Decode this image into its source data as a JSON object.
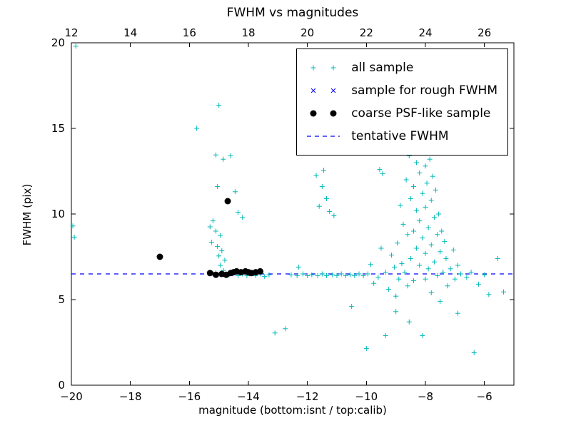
{
  "chart_data": {
    "type": "scatter",
    "title": "FWHM vs magnitudes",
    "xlabel": "magnitude (bottom:isnt / top:calib)",
    "ylabel": "FWHM (pix)",
    "xlim_bottom": [
      -20,
      -5
    ],
    "xlim_top": [
      12,
      27
    ],
    "ylim": [
      0,
      20
    ],
    "x_ticks_bottom": [
      -20,
      -18,
      -16,
      -14,
      -12,
      -10,
      -8,
      -6
    ],
    "x_ticks_top": [
      12,
      14,
      16,
      18,
      20,
      22,
      24,
      26
    ],
    "y_ticks": [
      0,
      5,
      10,
      15,
      20
    ],
    "grid": false,
    "legend_position": "upper right",
    "tentative_fwhm": 6.5,
    "colors": {
      "all_sample": "#00b8b8",
      "rough_fwhm": "#0000ff",
      "psf_like": "#000000",
      "tentative_line": "#0000ff",
      "frame": "#000000"
    },
    "series": [
      {
        "name": "all sample",
        "marker": "+",
        "color": "#00b8b8",
        "points": [
          [
            -19.85,
            19.8
          ],
          [
            -19.95,
            9.3
          ],
          [
            -19.9,
            8.65
          ],
          [
            -15.75,
            15.0
          ],
          [
            -15.0,
            16.35
          ],
          [
            -15.1,
            13.45
          ],
          [
            -14.85,
            13.2
          ],
          [
            -14.6,
            13.4
          ],
          [
            -15.05,
            11.6
          ],
          [
            -14.45,
            11.3
          ],
          [
            -14.35,
            10.1
          ],
          [
            -14.2,
            9.8
          ],
          [
            -15.2,
            9.6
          ],
          [
            -15.3,
            9.25
          ],
          [
            -15.1,
            9.0
          ],
          [
            -14.95,
            8.75
          ],
          [
            -15.25,
            8.35
          ],
          [
            -15.05,
            8.1
          ],
          [
            -14.9,
            7.85
          ],
          [
            -15.0,
            7.55
          ],
          [
            -14.8,
            7.3
          ],
          [
            -14.95,
            7.0
          ],
          [
            -14.85,
            6.7
          ],
          [
            -15.1,
            6.55
          ],
          [
            -14.65,
            6.45
          ],
          [
            -14.5,
            6.6
          ],
          [
            -14.35,
            6.4
          ],
          [
            -14.2,
            6.5
          ],
          [
            -14.05,
            6.4
          ],
          [
            -13.9,
            6.55
          ],
          [
            -13.75,
            6.4
          ],
          [
            -13.6,
            6.5
          ],
          [
            -13.45,
            6.35
          ],
          [
            -13.3,
            6.45
          ],
          [
            -13.1,
            3.05
          ],
          [
            -12.75,
            3.3
          ],
          [
            -12.55,
            6.45
          ],
          [
            -12.35,
            6.4
          ],
          [
            -12.3,
            6.9
          ],
          [
            -12.15,
            6.5
          ],
          [
            -12.0,
            6.4
          ],
          [
            -11.85,
            6.45
          ],
          [
            -11.65,
            6.4
          ],
          [
            -11.5,
            6.5
          ],
          [
            -11.35,
            6.4
          ],
          [
            -11.15,
            6.45
          ],
          [
            -11.0,
            6.4
          ],
          [
            -10.85,
            6.5
          ],
          [
            -10.7,
            6.4
          ],
          [
            -10.55,
            6.45
          ],
          [
            -10.4,
            6.4
          ],
          [
            -10.25,
            6.5
          ],
          [
            -10.1,
            6.4
          ],
          [
            -11.7,
            12.25
          ],
          [
            -11.45,
            12.55
          ],
          [
            -11.5,
            11.6
          ],
          [
            -11.35,
            10.9
          ],
          [
            -11.6,
            10.45
          ],
          [
            -11.25,
            10.15
          ],
          [
            -11.1,
            9.9
          ],
          [
            -10.5,
            4.6
          ],
          [
            -10.0,
            2.15
          ],
          [
            -9.35,
            2.9
          ],
          [
            -9.95,
            6.5
          ],
          [
            -9.85,
            7.05
          ],
          [
            -9.75,
            5.95
          ],
          [
            -9.6,
            6.3
          ],
          [
            -9.55,
            12.6
          ],
          [
            -9.45,
            12.35
          ],
          [
            -9.5,
            8.0
          ],
          [
            -9.35,
            6.6
          ],
          [
            -9.25,
            5.6
          ],
          [
            -9.15,
            7.6
          ],
          [
            -9.05,
            6.9
          ],
          [
            -9.0,
            5.2
          ],
          [
            -8.95,
            8.3
          ],
          [
            -8.9,
            6.2
          ],
          [
            -8.85,
            10.5
          ],
          [
            -8.8,
            7.1
          ],
          [
            -8.75,
            9.4
          ],
          [
            -8.7,
            6.6
          ],
          [
            -8.65,
            12.0
          ],
          [
            -8.6,
            8.8
          ],
          [
            -8.6,
            5.8
          ],
          [
            -8.55,
            13.4
          ],
          [
            -8.5,
            10.9
          ],
          [
            -8.5,
            7.4
          ],
          [
            -8.45,
            14.25
          ],
          [
            -8.4,
            11.6
          ],
          [
            -8.4,
            9.0
          ],
          [
            -8.4,
            6.1
          ],
          [
            -8.3,
            14.85
          ],
          [
            -8.3,
            13.0
          ],
          [
            -8.3,
            10.2
          ],
          [
            -8.3,
            8.0
          ],
          [
            -8.2,
            12.4
          ],
          [
            -8.2,
            9.6
          ],
          [
            -8.2,
            7.0
          ],
          [
            -8.15,
            13.6
          ],
          [
            -8.1,
            11.2
          ],
          [
            -8.1,
            8.6
          ],
          [
            -8.0,
            12.8
          ],
          [
            -8.0,
            10.4
          ],
          [
            -8.0,
            7.7
          ],
          [
            -8.0,
            6.2
          ],
          [
            -7.95,
            11.8
          ],
          [
            -7.9,
            9.2
          ],
          [
            -7.9,
            6.8
          ],
          [
            -7.85,
            13.2
          ],
          [
            -7.8,
            10.8
          ],
          [
            -7.8,
            8.2
          ],
          [
            -7.8,
            5.4
          ],
          [
            -7.75,
            12.2
          ],
          [
            -7.7,
            9.8
          ],
          [
            -7.7,
            7.2
          ],
          [
            -7.65,
            11.4
          ],
          [
            -7.6,
            8.8
          ],
          [
            -7.6,
            6.4
          ],
          [
            -7.55,
            10.0
          ],
          [
            -7.5,
            7.8
          ],
          [
            -7.45,
            9.0
          ],
          [
            -7.4,
            6.6
          ],
          [
            -7.35,
            8.4
          ],
          [
            -7.3,
            7.4
          ],
          [
            -7.25,
            5.8
          ],
          [
            -7.15,
            6.8
          ],
          [
            -7.05,
            7.9
          ],
          [
            -7.0,
            6.2
          ],
          [
            -6.9,
            7.0
          ],
          [
            -6.8,
            6.5
          ],
          [
            -6.6,
            6.3
          ],
          [
            -6.45,
            6.6
          ],
          [
            -6.2,
            5.9
          ],
          [
            -6.0,
            6.45
          ],
          [
            -9.0,
            4.3
          ],
          [
            -8.55,
            3.7
          ],
          [
            -8.1,
            2.9
          ],
          [
            -7.5,
            4.9
          ],
          [
            -6.9,
            4.2
          ],
          [
            -6.35,
            1.9
          ],
          [
            -5.85,
            5.3
          ],
          [
            -5.55,
            7.4
          ],
          [
            -5.35,
            5.45
          ]
        ]
      },
      {
        "name": "sample for rough FWHM",
        "marker": "x",
        "color": "#0000ff",
        "points": [
          [
            -17.0,
            7.5
          ],
          [
            -15.25,
            6.5
          ],
          [
            -14.9,
            6.45
          ],
          [
            -14.6,
            6.5
          ],
          [
            -14.4,
            6.6
          ],
          [
            -14.1,
            6.6
          ],
          [
            -13.9,
            6.5
          ],
          [
            -13.6,
            6.6
          ]
        ]
      },
      {
        "name": "coarse PSF-like sample",
        "marker": "circle",
        "color": "#000000",
        "points": [
          [
            -17.0,
            7.5
          ],
          [
            -14.7,
            10.75
          ],
          [
            -15.3,
            6.55
          ],
          [
            -15.1,
            6.45
          ],
          [
            -14.9,
            6.5
          ],
          [
            -14.75,
            6.45
          ],
          [
            -14.6,
            6.55
          ],
          [
            -14.5,
            6.6
          ],
          [
            -14.4,
            6.65
          ],
          [
            -14.25,
            6.6
          ],
          [
            -14.1,
            6.65
          ],
          [
            -14.0,
            6.6
          ],
          [
            -13.9,
            6.55
          ],
          [
            -13.75,
            6.6
          ],
          [
            -13.6,
            6.65
          ]
        ]
      },
      {
        "name": "tentative FWHM",
        "marker": "dashed-line",
        "color": "#0000ff",
        "y": 6.5
      }
    ]
  }
}
